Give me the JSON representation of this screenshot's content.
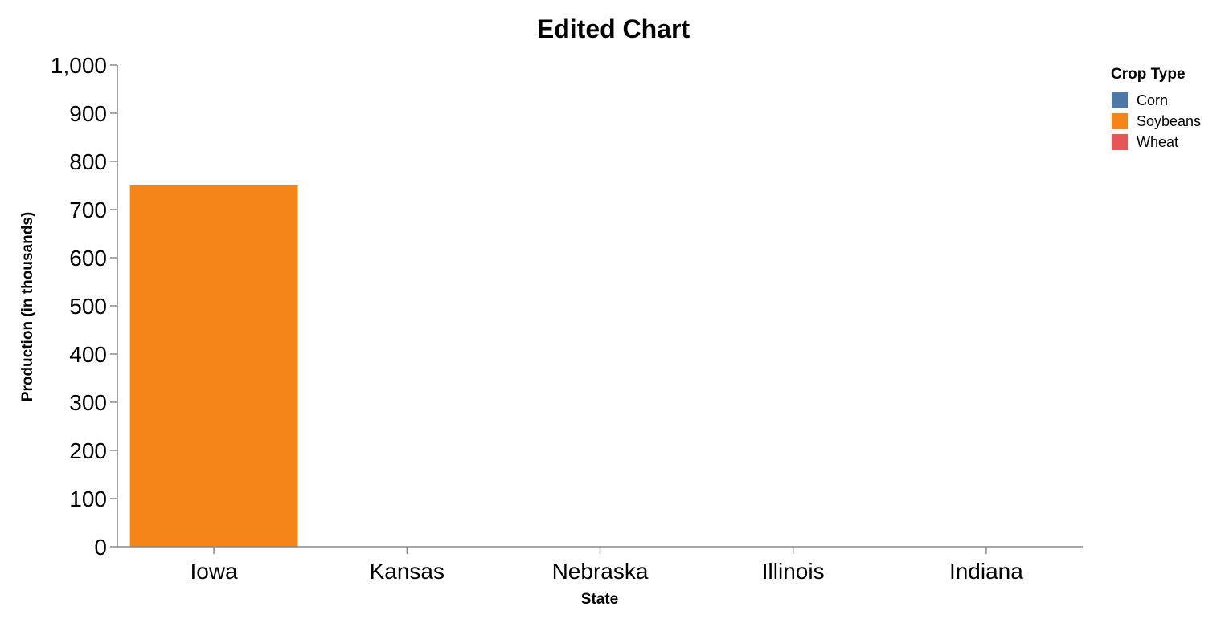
{
  "chart_data": {
    "type": "bar",
    "title": "Edited Chart",
    "xlabel": "State",
    "ylabel": "Production (in thousands)",
    "categories": [
      "Iowa",
      "Kansas",
      "Nebraska",
      "Illinois",
      "Indiana"
    ],
    "series": [
      {
        "name": "Soybeans",
        "values": [
          750,
          0,
          0,
          0,
          0
        ]
      }
    ],
    "ylim": [
      0,
      1000
    ],
    "yticks": [
      0,
      100,
      200,
      300,
      400,
      500,
      600,
      700,
      800,
      900,
      1000
    ],
    "ytick_labels": [
      "0",
      "100",
      "200",
      "300",
      "400",
      "500",
      "600",
      "700",
      "800",
      "900",
      "1,000"
    ],
    "grid": false,
    "legend": {
      "title": "Crop Type",
      "placement": "top-right",
      "entries": [
        {
          "name": "Corn",
          "color": "#4c78a8"
        },
        {
          "name": "Soybeans",
          "color": "#f58518"
        },
        {
          "name": "Wheat",
          "color": "#e45756"
        }
      ]
    }
  }
}
